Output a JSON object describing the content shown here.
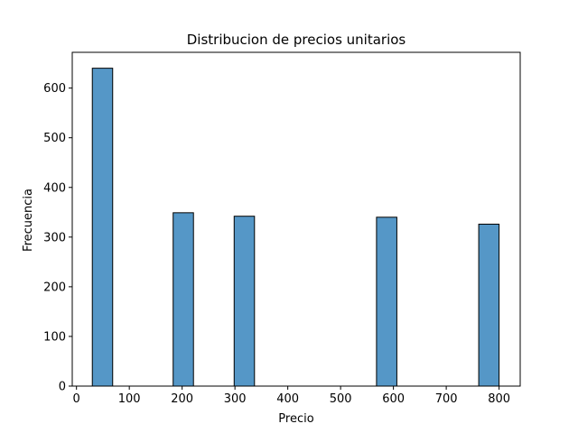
{
  "chart_data": {
    "type": "bar",
    "title": "Distribucion de precios unitarios",
    "xlabel": "Precio",
    "ylabel": "Frecuencia",
    "xlim": [
      0,
      840
    ],
    "ylim": [
      0,
      672
    ],
    "xticks": [
      0,
      100,
      200,
      300,
      400,
      500,
      600,
      700,
      800
    ],
    "yticks": [
      0,
      100,
      200,
      300,
      400,
      500,
      600
    ],
    "grid": false,
    "bin_width": 38.5,
    "bins": [
      {
        "start": 30,
        "end": 68.5,
        "count": 640
      },
      {
        "start": 183,
        "end": 221.5,
        "count": 349
      },
      {
        "start": 298.5,
        "end": 337,
        "count": 342
      },
      {
        "start": 568,
        "end": 606.5,
        "count": 340
      },
      {
        "start": 761.5,
        "end": 800,
        "count": 326
      }
    ],
    "bar_color": "#5597c7",
    "edge_color": "#000000"
  }
}
